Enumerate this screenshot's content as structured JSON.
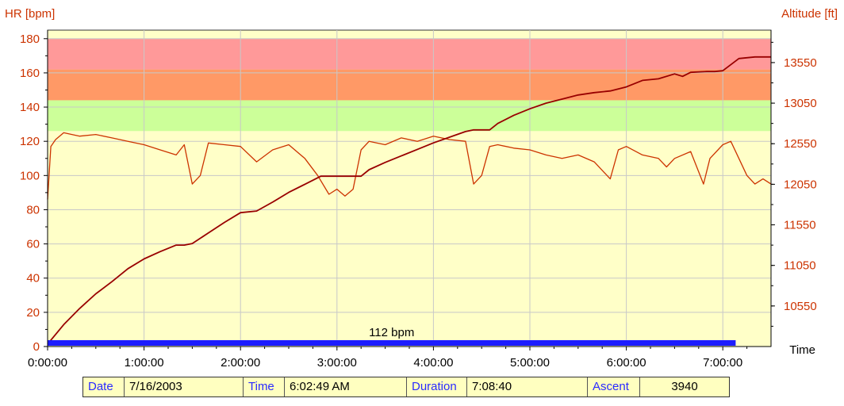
{
  "chart_data": {
    "type": "line",
    "left_axis": {
      "label": "HR [bpm]",
      "ticks": [
        0,
        20,
        40,
        60,
        80,
        100,
        120,
        140,
        160,
        180
      ],
      "range": [
        0,
        185
      ]
    },
    "right_axis": {
      "label": "Altitude [ft]",
      "ticks": [
        10550,
        11050,
        11550,
        12050,
        12550,
        13050,
        13550
      ],
      "range": [
        10050,
        13950
      ]
    },
    "x_axis": {
      "label": "Time",
      "ticks": [
        "0:00:00",
        "1:00:00",
        "2:00:00",
        "3:00:00",
        "4:00:00",
        "5:00:00",
        "6:00:00",
        "7:00:00"
      ],
      "range_minutes": [
        0,
        450
      ]
    },
    "zones": [
      {
        "from": 0,
        "to": 126,
        "color": "#ffffc8"
      },
      {
        "from": 126,
        "to": 144,
        "color": "#ccff99"
      },
      {
        "from": 144,
        "to": 162,
        "color": "#ff9966"
      },
      {
        "from": 162,
        "to": 180,
        "color": "#ff9999"
      }
    ],
    "average_bar": {
      "label": "112 bpm",
      "end_minute": 428,
      "color": "#1c1cff"
    },
    "series": [
      {
        "color": "#cc3300",
        "axis": "left",
        "points": [
          [
            0,
            86
          ],
          [
            2,
            117
          ],
          [
            5,
            121
          ],
          [
            10,
            125
          ],
          [
            20,
            123
          ],
          [
            30,
            124
          ],
          [
            40,
            122
          ],
          [
            50,
            120
          ],
          [
            60,
            118
          ],
          [
            70,
            115
          ],
          [
            80,
            112
          ],
          [
            85,
            118
          ],
          [
            90,
            95
          ],
          [
            95,
            100
          ],
          [
            100,
            119
          ],
          [
            110,
            118
          ],
          [
            120,
            117
          ],
          [
            130,
            108
          ],
          [
            140,
            115
          ],
          [
            150,
            118
          ],
          [
            160,
            110
          ],
          [
            168,
            100
          ],
          [
            175,
            89
          ],
          [
            180,
            92
          ],
          [
            185,
            88
          ],
          [
            190,
            92
          ],
          [
            195,
            115
          ],
          [
            200,
            120
          ],
          [
            210,
            118
          ],
          [
            220,
            122
          ],
          [
            230,
            120
          ],
          [
            240,
            123
          ],
          [
            250,
            121
          ],
          [
            260,
            120
          ],
          [
            265,
            95
          ],
          [
            270,
            100
          ],
          [
            275,
            117
          ],
          [
            280,
            118
          ],
          [
            290,
            116
          ],
          [
            300,
            115
          ],
          [
            310,
            112
          ],
          [
            320,
            110
          ],
          [
            330,
            112
          ],
          [
            340,
            108
          ],
          [
            350,
            98
          ],
          [
            355,
            115
          ],
          [
            360,
            117
          ],
          [
            370,
            112
          ],
          [
            380,
            110
          ],
          [
            385,
            105
          ],
          [
            390,
            110
          ],
          [
            400,
            114
          ],
          [
            408,
            95
          ],
          [
            412,
            110
          ],
          [
            420,
            118
          ],
          [
            425,
            120
          ],
          [
            430,
            110
          ],
          [
            435,
            100
          ],
          [
            440,
            95
          ],
          [
            445,
            98
          ],
          [
            450,
            95
          ]
        ]
      },
      {
        "color": "#990000",
        "axis": "right",
        "points": [
          [
            0,
            10080
          ],
          [
            10,
            10320
          ],
          [
            20,
            10520
          ],
          [
            30,
            10700
          ],
          [
            40,
            10850
          ],
          [
            50,
            11010
          ],
          [
            60,
            11130
          ],
          [
            70,
            11220
          ],
          [
            80,
            11300
          ],
          [
            85,
            11300
          ],
          [
            90,
            11320
          ],
          [
            100,
            11450
          ],
          [
            110,
            11580
          ],
          [
            120,
            11700
          ],
          [
            130,
            11720
          ],
          [
            140,
            11830
          ],
          [
            150,
            11950
          ],
          [
            160,
            12050
          ],
          [
            170,
            12150
          ],
          [
            175,
            12150
          ],
          [
            180,
            12150
          ],
          [
            195,
            12150
          ],
          [
            200,
            12230
          ],
          [
            210,
            12320
          ],
          [
            220,
            12400
          ],
          [
            230,
            12480
          ],
          [
            240,
            12560
          ],
          [
            250,
            12630
          ],
          [
            260,
            12700
          ],
          [
            265,
            12720
          ],
          [
            275,
            12720
          ],
          [
            280,
            12800
          ],
          [
            290,
            12900
          ],
          [
            300,
            12980
          ],
          [
            310,
            13050
          ],
          [
            320,
            13100
          ],
          [
            330,
            13150
          ],
          [
            340,
            13180
          ],
          [
            350,
            13200
          ],
          [
            360,
            13250
          ],
          [
            370,
            13330
          ],
          [
            380,
            13350
          ],
          [
            390,
            13410
          ],
          [
            395,
            13380
          ],
          [
            400,
            13430
          ],
          [
            410,
            13440
          ],
          [
            415,
            13440
          ],
          [
            420,
            13450
          ],
          [
            430,
            13600
          ],
          [
            440,
            13620
          ],
          [
            450,
            13620
          ]
        ]
      }
    ]
  },
  "info": {
    "date_label": "Date",
    "date_value": "7/16/2003",
    "time_label": "Time",
    "time_value": "6:02:49 AM",
    "duration_label": "Duration",
    "duration_value": "7:08:40",
    "ascent_label": "Ascent",
    "ascent_value": "3940"
  }
}
